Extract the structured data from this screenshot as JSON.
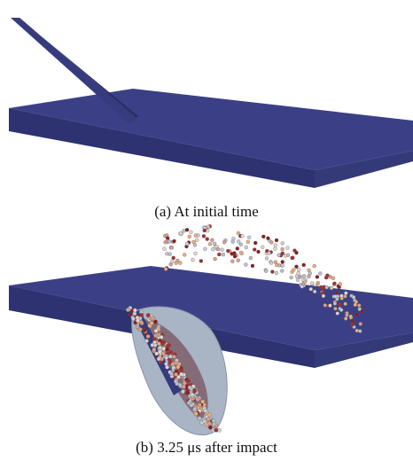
{
  "figure": {
    "panels": [
      {
        "caption": "(a) At initial time"
      },
      {
        "caption": "(b) 3.25 μs  after impact"
      }
    ]
  }
}
